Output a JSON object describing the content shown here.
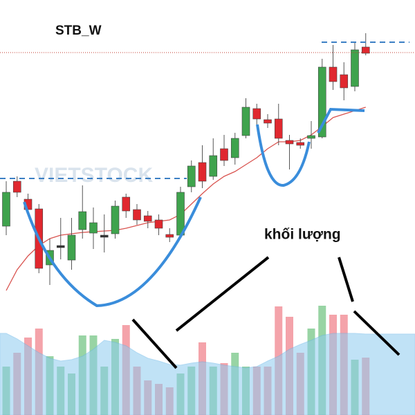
{
  "chart_data": {
    "type": "candlestick",
    "title": "STB_W",
    "annotation": "khối lượng",
    "watermark": "VIETSTOCK",
    "ylim": [
      0,
      600
    ],
    "up_color": "#3fa34d",
    "down_color": "#e0282f",
    "neutral_color": "#333333",
    "open": [
      273,
      338,
      312,
      298,
      217,
      245,
      224,
      268,
      263,
      260,
      262,
      315,
      297,
      288,
      282,
      261,
      260,
      330,
      365,
      345,
      385,
      372,
      404,
      443,
      427,
      428,
      397,
      394,
      400,
      402,
      503,
      492,
      475,
      532
    ],
    "close": [
      322,
      322,
      297,
      212,
      238,
      245,
      260,
      294,
      278,
      260,
      302,
      295,
      282,
      280,
      270,
      257,
      322,
      360,
      338,
      375,
      368,
      400,
      445,
      428,
      422,
      400,
      392,
      390,
      404,
      503,
      482,
      473,
      528,
      523
    ],
    "high": [
      338,
      345,
      320,
      305,
      255,
      285,
      285,
      332,
      300,
      290,
      310,
      320,
      305,
      295,
      290,
      270,
      330,
      368,
      390,
      400,
      405,
      408,
      458,
      450,
      435,
      450,
      405,
      400,
      425,
      515,
      535,
      510,
      540,
      552
    ],
    "low": [
      260,
      315,
      290,
      205,
      188,
      225,
      210,
      255,
      240,
      235,
      255,
      285,
      275,
      270,
      260,
      250,
      255,
      322,
      328,
      340,
      360,
      362,
      400,
      420,
      415,
      390,
      355,
      385,
      385,
      400,
      470,
      455,
      468,
      520
    ],
    "ma": {
      "color": "#d9534f",
      "values": [
        180,
        210,
        230,
        245,
        255,
        260,
        262,
        264,
        265,
        266,
        267,
        270,
        274,
        278,
        280,
        282,
        290,
        305,
        320,
        334,
        345,
        352,
        362,
        372,
        385,
        395,
        395,
        397,
        405,
        417,
        430,
        435,
        440,
        445
      ]
    },
    "volume": [
      70,
      90,
      112,
      125,
      85,
      70,
      60,
      115,
      115,
      70,
      110,
      130,
      70,
      50,
      45,
      40,
      60,
      70,
      105,
      70,
      75,
      90,
      70,
      70,
      70,
      157,
      142,
      90,
      125,
      158,
      145,
      145,
      80,
      83
    ],
    "volume_ma": {
      "color": "#8ecbf0",
      "values": [
        118,
        110,
        100,
        90,
        82,
        78,
        80,
        85,
        95,
        108,
        105,
        100,
        90,
        82,
        78,
        73,
        72,
        75,
        77,
        75,
        72,
        70,
        68,
        70,
        78,
        85,
        95,
        102,
        108,
        115,
        118,
        118,
        118,
        117
      ]
    }
  }
}
